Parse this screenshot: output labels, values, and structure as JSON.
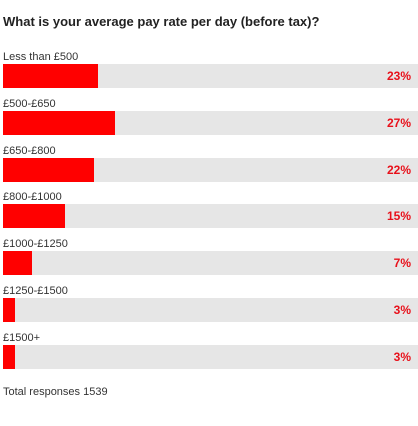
{
  "chart_data": {
    "type": "bar",
    "orientation": "horizontal",
    "title": "What is your average pay rate per day (before tax)?",
    "categories": [
      "Less than £500",
      "£500-£650",
      "£650-£800",
      "£800-£1000",
      "£1000-£1250",
      "£1250-£1500",
      "£1500+"
    ],
    "values": [
      23,
      27,
      22,
      15,
      7,
      3,
      3
    ],
    "value_labels": [
      "23%",
      "27%",
      "22%",
      "15%",
      "7%",
      "3%",
      "3%"
    ],
    "unit": "%",
    "xlim": [
      0,
      100
    ],
    "grid": false,
    "legend": "none",
    "colors": {
      "bar": "#ff0000",
      "track": "#e6e6e6",
      "value_text": "#e8101a"
    }
  },
  "footer": {
    "total_responses": "Total responses 1539"
  }
}
